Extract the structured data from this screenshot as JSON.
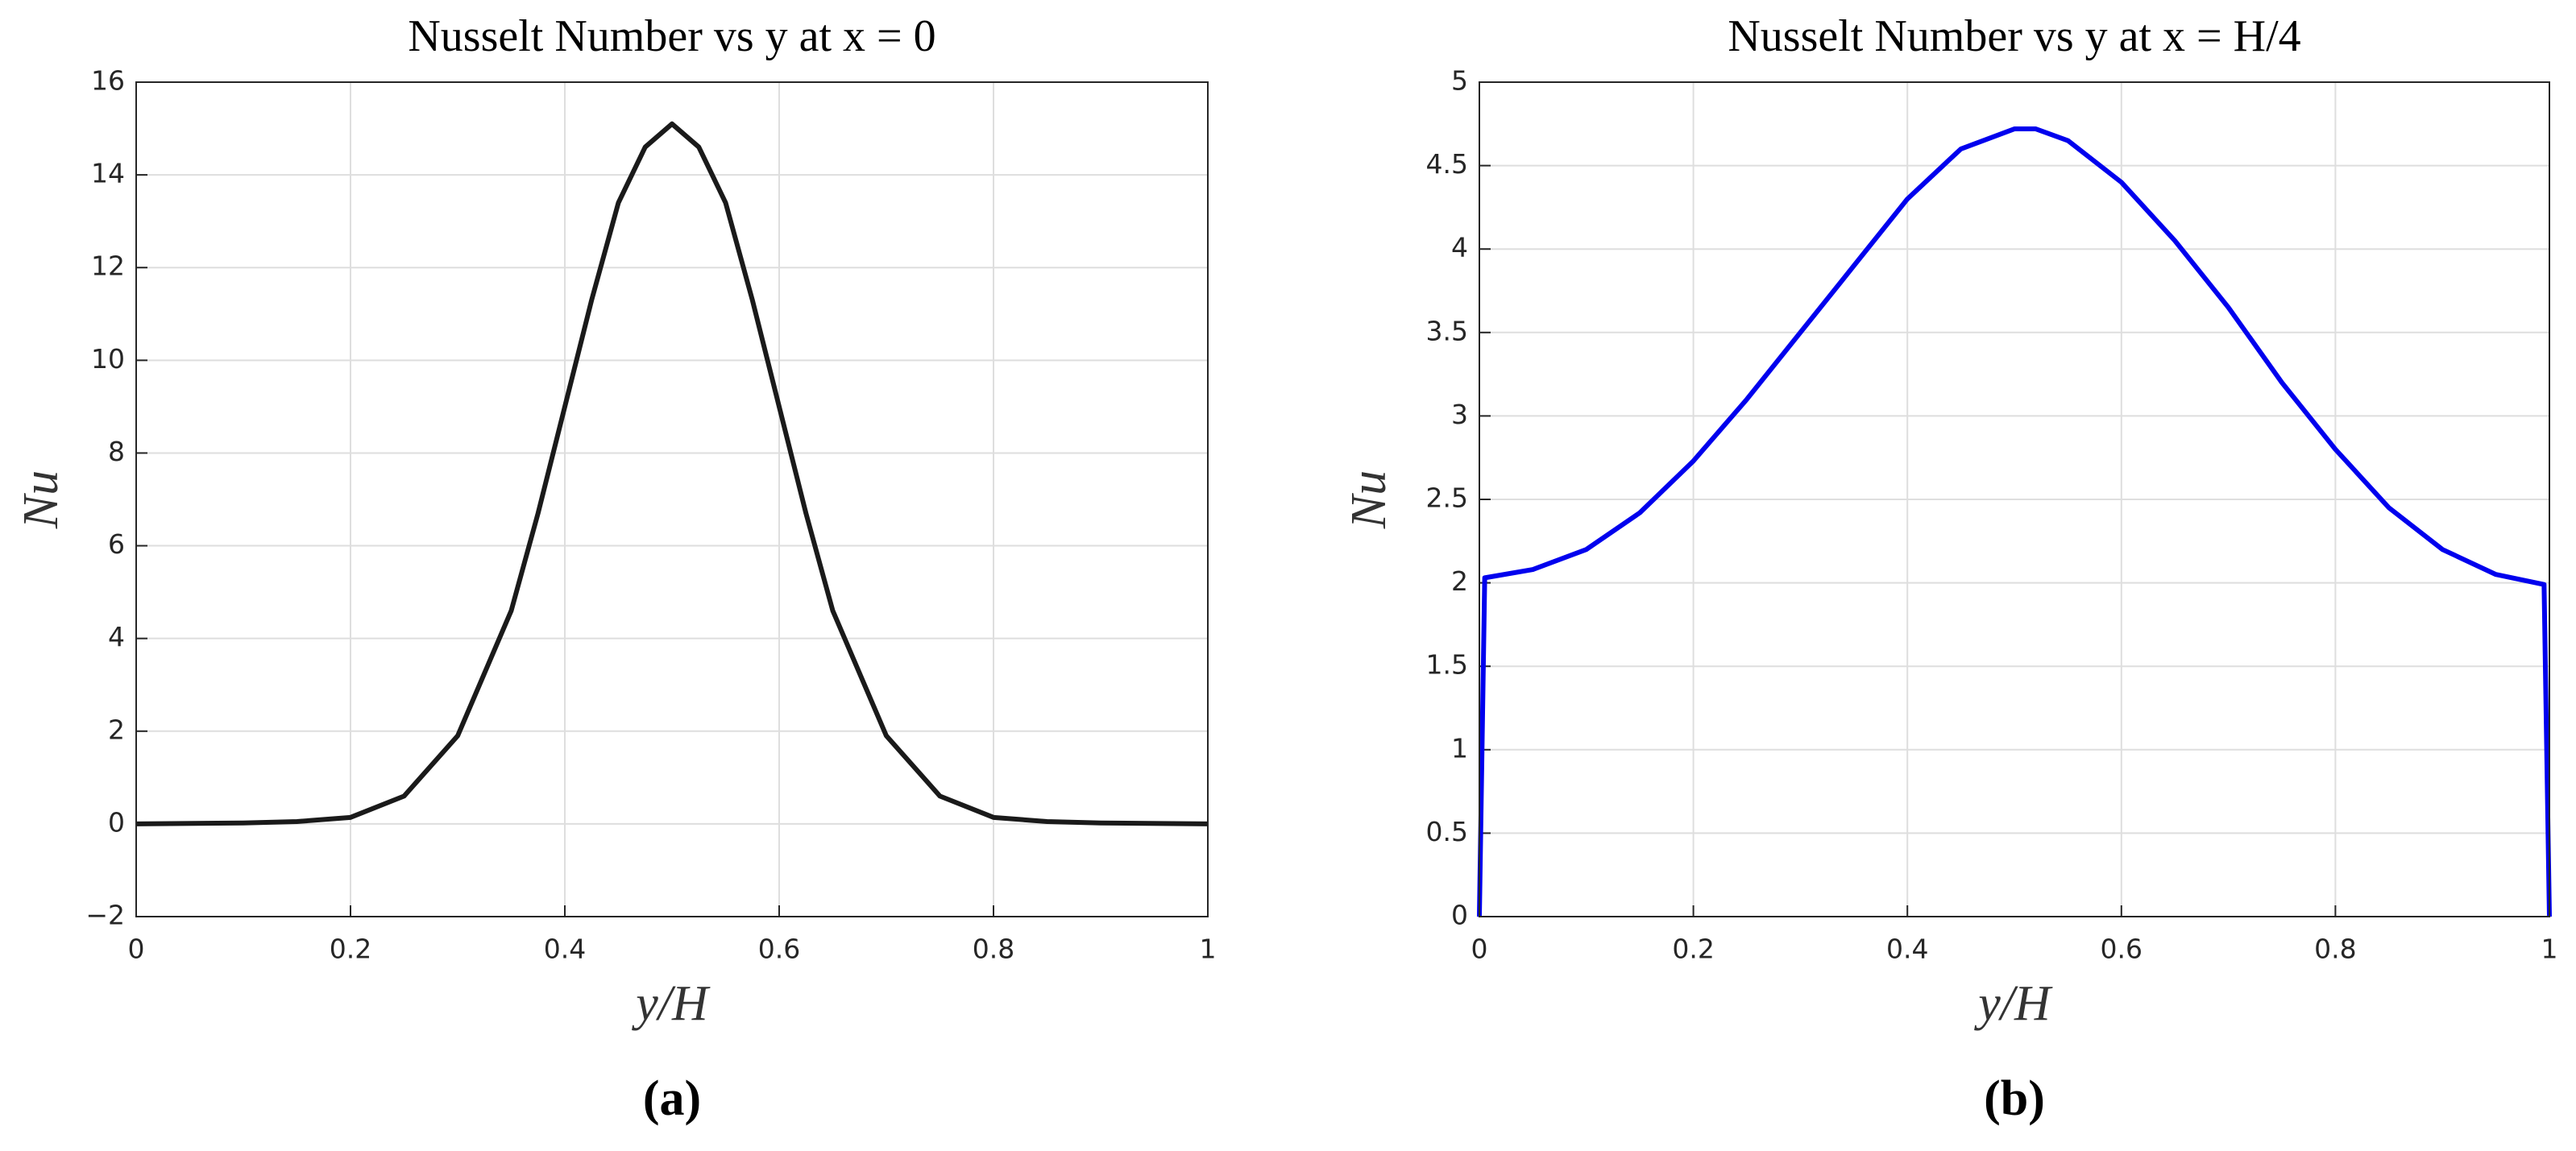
{
  "chart_data": [
    {
      "type": "line",
      "title": "Nusselt Number vs y at x = 0",
      "xlabel": "y/H",
      "ylabel": "Nu",
      "subcaption": "(a)",
      "xlim": [
        0,
        1
      ],
      "xticks": [
        0,
        0.2,
        0.4,
        0.6,
        0.8,
        1
      ],
      "ylim": [
        -2,
        16
      ],
      "yticks": [
        {
          "value": -2,
          "label": "−2"
        },
        0,
        2,
        4,
        6,
        8,
        10,
        12,
        14,
        16
      ],
      "grid": true,
      "series": [
        {
          "name": "Nu",
          "color": "#1a1a1a",
          "x": [
            0,
            0.1,
            0.15,
            0.2,
            0.25,
            0.3,
            0.35,
            0.375,
            0.4,
            0.425,
            0.45,
            0.475,
            0.5,
            0.525,
            0.55,
            0.575,
            0.6,
            0.625,
            0.65,
            0.7,
            0.75,
            0.8,
            0.85,
            0.9,
            1
          ],
          "values": [
            0,
            0.02,
            0.05,
            0.14,
            0.6,
            1.9,
            4.6,
            6.7,
            9.0,
            11.3,
            13.4,
            14.6,
            15.1,
            14.6,
            13.4,
            11.3,
            9.0,
            6.7,
            4.6,
            1.9,
            0.6,
            0.14,
            0.05,
            0.02,
            0
          ]
        }
      ]
    },
    {
      "type": "line",
      "title": "Nusselt Number vs y at x = H/4",
      "xlabel": "y/H",
      "ylabel": "Nu",
      "subcaption": "(b)",
      "xlim": [
        0,
        1
      ],
      "xticks": [
        0,
        0.2,
        0.4,
        0.6,
        0.8,
        1
      ],
      "ylim": [
        0,
        5
      ],
      "yticks": [
        0,
        0.5,
        1,
        1.5,
        2,
        2.5,
        3,
        3.5,
        4,
        4.5,
        5
      ],
      "grid": true,
      "series": [
        {
          "name": "Nu",
          "color": "#0000ee",
          "x": [
            0,
            0.005,
            0.05,
            0.1,
            0.15,
            0.2,
            0.25,
            0.3,
            0.35,
            0.4,
            0.45,
            0.5,
            0.52,
            0.55,
            0.6,
            0.65,
            0.7,
            0.75,
            0.8,
            0.85,
            0.9,
            0.95,
            0.995,
            1
          ],
          "values": [
            0,
            2.03,
            2.08,
            2.2,
            2.42,
            2.73,
            3.1,
            3.5,
            3.9,
            4.3,
            4.6,
            4.72,
            4.72,
            4.65,
            4.4,
            4.05,
            3.65,
            3.2,
            2.8,
            2.45,
            2.2,
            2.05,
            1.99,
            0
          ]
        }
      ]
    }
  ]
}
